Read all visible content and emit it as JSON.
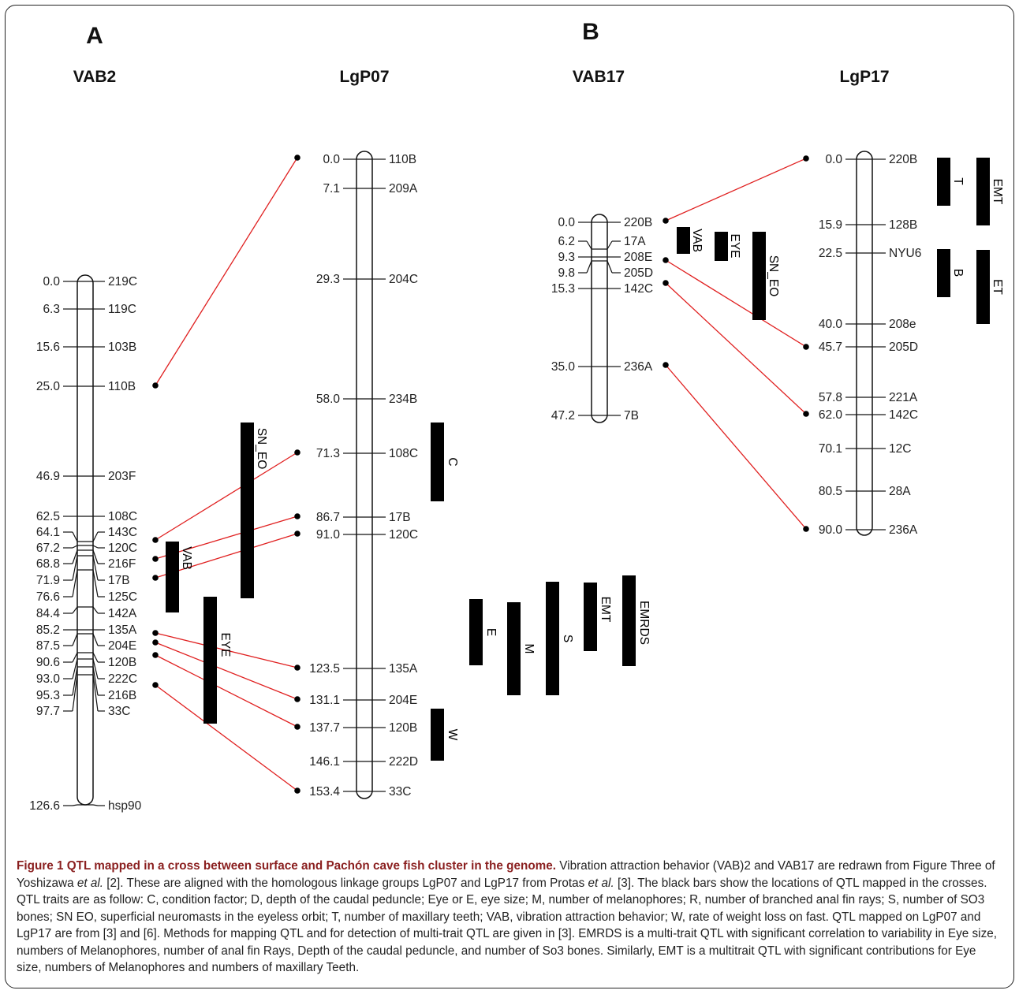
{
  "panels": {
    "a": {
      "label": "A"
    },
    "b": {
      "label": "B"
    }
  },
  "maps": {
    "VAB2": {
      "title": "VAB2",
      "markers": [
        {
          "pos": "0.0",
          "name": "219C"
        },
        {
          "pos": "6.3",
          "name": "119C"
        },
        {
          "pos": "15.6",
          "name": "103B"
        },
        {
          "pos": "25.0",
          "name": "110B"
        },
        {
          "pos": "46.9",
          "name": "203F"
        },
        {
          "pos": "62.5",
          "name": "108C"
        },
        {
          "pos": "64.1",
          "name": "143C"
        },
        {
          "pos": "67.2",
          "name": "120C"
        },
        {
          "pos": "68.8",
          "name": "216F"
        },
        {
          "pos": "71.9",
          "name": "17B"
        },
        {
          "pos": "76.6",
          "name": "125C"
        },
        {
          "pos": "84.4",
          "name": "142A"
        },
        {
          "pos": "85.2",
          "name": "135A"
        },
        {
          "pos": "87.5",
          "name": "204E"
        },
        {
          "pos": "90.6",
          "name": "120B"
        },
        {
          "pos": "93.0",
          "name": "222C"
        },
        {
          "pos": "95.3",
          "name": "216B"
        },
        {
          "pos": "97.7",
          "name": "33C"
        },
        {
          "pos": "126.6",
          "name": "hsp90"
        }
      ]
    },
    "LgP07": {
      "title": "LgP07",
      "markers": [
        {
          "pos": "0.0",
          "name": "110B"
        },
        {
          "pos": "7.1",
          "name": "209A"
        },
        {
          "pos": "29.3",
          "name": "204C"
        },
        {
          "pos": "58.0",
          "name": "234B"
        },
        {
          "pos": "71.3",
          "name": "108C"
        },
        {
          "pos": "86.7",
          "name": "17B"
        },
        {
          "pos": "91.0",
          "name": "120C"
        },
        {
          "pos": "123.5",
          "name": "135A"
        },
        {
          "pos": "131.1",
          "name": "204E"
        },
        {
          "pos": "137.7",
          "name": "120B"
        },
        {
          "pos": "146.1",
          "name": "222D"
        },
        {
          "pos": "153.4",
          "name": "33C"
        }
      ]
    },
    "VAB17": {
      "title": "VAB17",
      "markers": [
        {
          "pos": "0.0",
          "name": "220B"
        },
        {
          "pos": "6.2",
          "name": "17A"
        },
        {
          "pos": "9.3",
          "name": "208E"
        },
        {
          "pos": "9.8",
          "name": "205D"
        },
        {
          "pos": "15.3",
          "name": "142C"
        },
        {
          "pos": "35.0",
          "name": "236A"
        },
        {
          "pos": "47.2",
          "name": "7B"
        }
      ]
    },
    "LgP17": {
      "title": "LgP17",
      "markers": [
        {
          "pos": "0.0",
          "name": "220B"
        },
        {
          "pos": "15.9",
          "name": "128B"
        },
        {
          "pos": "22.5",
          "name": "NYU6"
        },
        {
          "pos": "40.0",
          "name": "208e"
        },
        {
          "pos": "45.7",
          "name": "205D"
        },
        {
          "pos": "57.8",
          "name": "221A"
        },
        {
          "pos": "62.0",
          "name": "142C"
        },
        {
          "pos": "70.1",
          "name": "12C"
        },
        {
          "pos": "80.5",
          "name": "28A"
        },
        {
          "pos": "90.0",
          "name": "236A"
        }
      ]
    }
  },
  "qtl_bars": [
    {
      "label": "SN_EO",
      "map": "VAB2"
    },
    {
      "label": "VAB",
      "map": "VAB2"
    },
    {
      "label": "EYE",
      "map": "VAB2"
    },
    {
      "label": "C",
      "map": "LgP07"
    },
    {
      "label": "W",
      "map": "LgP07"
    },
    {
      "label": "E",
      "map": "LgP07"
    },
    {
      "label": "M",
      "map": "LgP07"
    },
    {
      "label": "S",
      "map": "LgP07"
    },
    {
      "label": "EMT",
      "map": "LgP07"
    },
    {
      "label": "EMRDS",
      "map": "LgP07"
    },
    {
      "label": "VAB",
      "map": "VAB17"
    },
    {
      "label": "EYE",
      "map": "VAB17"
    },
    {
      "label": "SN_EO",
      "map": "VAB17"
    },
    {
      "label": "T",
      "map": "LgP17"
    },
    {
      "label": "EMT",
      "map": "LgP17"
    },
    {
      "label": "B",
      "map": "LgP17"
    },
    {
      "label": "ET",
      "map": "LgP17"
    }
  ],
  "colors": {
    "link": "#e02020",
    "bar": "#000000",
    "text": "#222222",
    "caption_title": "#8a1f1f"
  },
  "caption": {
    "title": "Figure 1 QTL mapped in a cross between surface and Pachón cave fish cluster in the genome.",
    "body_1": " Vibration attraction behavior (VAB)2 and VAB17 are redrawn from Figure Three of Yoshizawa ",
    "et_al_1": "et al.",
    "body_2": " [2]. These are aligned with the homologous linkage groups LgP07 and LgP17 from Protas ",
    "et_al_2": "et al.",
    "body_3": " [3]. The black bars show the locations of QTL mapped in the crosses. QTL traits are as follow: C, condition factor; D, depth of the caudal peduncle; Eye or E, eye size; M, number of melanophores; R, number of branched anal fin rays; S, number of SO3 bones; SN EO, superficial neuromasts in the eyeless orbit; T, number of maxillary teeth; VAB, vibration attraction behavior; W, rate of weight loss on fast. QTL mapped on LgP07 and LgP17 are from [3] and [6]. Methods for mapping QTL and for detection of multi-trait QTL are given in [3]. EMRDS is a multi-trait QTL with significant correlation to variability in Eye size, numbers of Melanophores, number of anal fin Rays, Depth of the caudal peduncle, and number of So3 bones.  Similarly, EMT is a multitrait QTL with significant contributions for Eye size, numbers of Melanophores and numbers of maxillary Teeth."
  }
}
